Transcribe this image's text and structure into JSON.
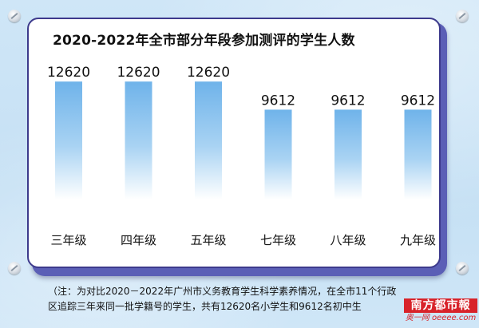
{
  "chart_data": {
    "type": "bar",
    "title": "2020-2022年全市部分年段参加测评的学生人数",
    "categories": [
      "三年级",
      "四年级",
      "五年级",
      "七年级",
      "八年级",
      "九年级"
    ],
    "values": [
      12620,
      12620,
      12620,
      9612,
      9612,
      9612
    ],
    "value_labels": [
      "12620",
      "12620",
      "12620",
      "9612",
      "9612",
      "9612"
    ],
    "xlabel": "",
    "ylabel": "",
    "ylim": [
      0,
      14000
    ],
    "grid": false,
    "legend": "none",
    "bar_color_top": "#6fb3ea",
    "bar_color_bottom": "#ffffff"
  },
  "note": {
    "line1": "（注：为对比2020－2022年广州市义务教育学生科学素养情况，在全市11个行政",
    "line2": "区追踪三年来同一批学籍号的学生，共有12620名小学生和9612名初中生"
  },
  "logo": {
    "top_text": "南方都市報",
    "bottom_text": "奥一网 oeeee.com"
  },
  "colors": {
    "background": "#c8e2f5",
    "card_border": "#3d3a8c",
    "card_shadow": "#5b5fb6",
    "logo_red": "#d8232a"
  }
}
